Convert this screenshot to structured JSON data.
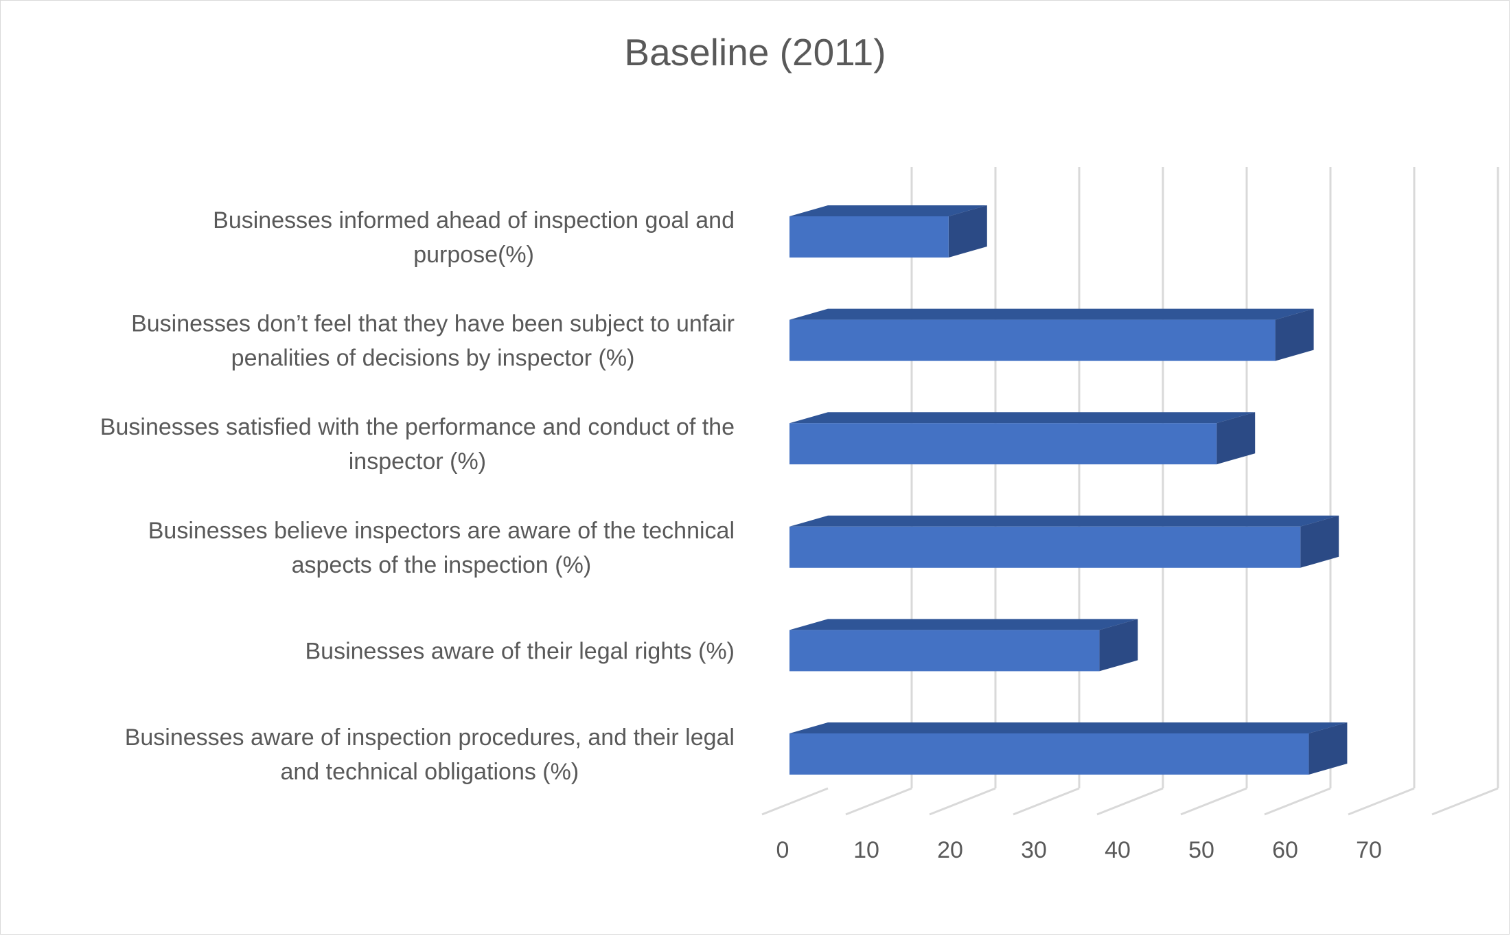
{
  "chart_data": {
    "type": "bar",
    "orientation": "horizontal",
    "style": "3d",
    "title": "Baseline (2011)",
    "xlabel": "",
    "ylabel": "",
    "categories": [
      [
        "Businesses aware of inspection procedures, and their legal",
        "and technical obligations (%)"
      ],
      [
        "Businesses aware of their legal rights (%)"
      ],
      [
        "Businesses believe inspectors are aware of the technical",
        "aspects of the inspection (%)"
      ],
      [
        "Businesses satisfied with the performance and conduct of the",
        "inspector (%)"
      ],
      [
        "Businesses don’t feel that they have been subject to unfair",
        "penalities of decisions by inspector (%)"
      ],
      [
        "Businesses informed ahead of inspection goal and",
        "purpose(%)"
      ]
    ],
    "values": [
      62,
      37,
      61,
      51,
      58,
      19
    ],
    "xlim": [
      0,
      80
    ],
    "xticks": [
      0,
      10,
      20,
      30,
      40,
      50,
      60,
      70
    ],
    "grid": true,
    "legend": "none",
    "colors": {
      "bar_front": "#4472C4",
      "bar_top": "#2F5597",
      "bar_side": "#2B4A85",
      "grid": "#d9d9d9",
      "text": "#595959"
    }
  }
}
